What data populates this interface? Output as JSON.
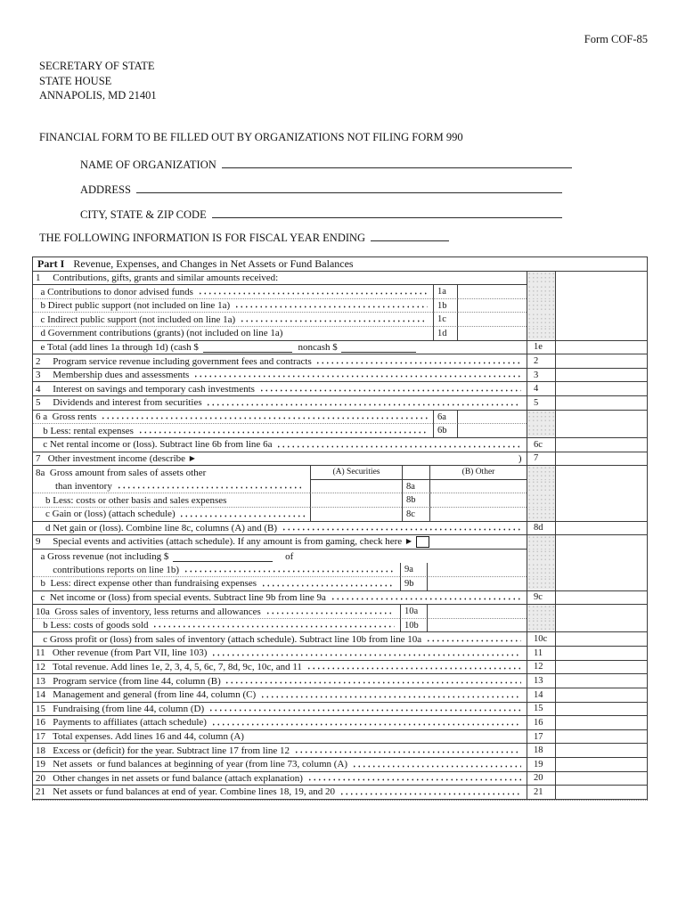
{
  "icons": {
    "triangle": "▶"
  },
  "form": {
    "number": "Form COF-85",
    "agency": [
      "SECRETARY OF STATE",
      "STATE HOUSE",
      "ANNAPOLIS, MD 21401"
    ],
    "title": "FINANCIAL FORM TO BE FILLED OUT BY ORGANIZATIONS NOT FILING FORM 990",
    "fields": [
      {
        "label": "NAME OF ORGANIZATION",
        "value": ""
      },
      {
        "label": "ADDRESS",
        "value": ""
      },
      {
        "label": "CITY, STATE & ZIP CODE",
        "value": ""
      }
    ],
    "fiscal": {
      "label": "THE FOLLOWING INFORMATION IS FOR FISCAL YEAR ENDING",
      "value": ""
    }
  },
  "part1": {
    "label": "Part I",
    "title": "Revenue, Expenses, and Changes in Net Assets or Fund Balances",
    "rows": [
      {
        "k": "plain",
        "text": "1     Contributions, gifts, grants and similar amounts received:",
        "sep": "solid"
      },
      {
        "k": "label",
        "lc": "n",
        "text": "  a Contributions to donor advised funds ",
        "dots": true,
        "num": "1a",
        "value": "",
        "sep": "dotted"
      },
      {
        "k": "label",
        "lc": "n",
        "text": "  b Direct public support (not included on line 1a) ",
        "dots": true,
        "num": "1b",
        "value": "",
        "sep": "dotted"
      },
      {
        "k": "label",
        "lc": "n",
        "text": "  c Indirect public support (not included on line 1a) ",
        "dots": true,
        "num": "1c",
        "value": "",
        "sep": "dotted"
      },
      {
        "k": "label",
        "lc": "n",
        "text": "  d Government contributions (grants) (not included on line 1a)",
        "dots": false,
        "num": "1d",
        "value": "",
        "sep": "solid",
        "outerSep": true
      },
      {
        "k": "etotal",
        "text": "  e Total (add lines 1a through 1d) (cash $ ",
        "text2": " noncash $ ",
        "cash_value": "",
        "noncash_value": "",
        "num": "1e",
        "value": "",
        "sep": "solid"
      },
      {
        "k": "active",
        "text": "2     Program service revenue including government fees and contracts ",
        "dots": true,
        "num": "2",
        "value": "",
        "sep": "solid"
      },
      {
        "k": "active",
        "text": "3     Membership dues and assessments ",
        "dots": true,
        "num": "3",
        "value": "",
        "sep": "solid"
      },
      {
        "k": "active",
        "text": "4     Interest on savings and temporary cash investments ",
        "dots": true,
        "num": "4",
        "value": "",
        "sep": "solid"
      },
      {
        "k": "active",
        "text": "5     Dividends and interest from securities ",
        "dots": true,
        "num": "5",
        "value": "",
        "sep": "solid"
      },
      {
        "k": "label",
        "lc": "n",
        "text": "6 a  Gross rents ",
        "dots": true,
        "num": "6a",
        "value": "",
        "sep": "dotted"
      },
      {
        "k": "label",
        "lc": "n",
        "text": "   b Less: rental expenses ",
        "dots": true,
        "num": "6b",
        "value": "",
        "sep": "solid",
        "outerSep": true
      },
      {
        "k": "active",
        "text": "   c Net rental income or (loss). Subtract line 6b from line 6a ",
        "dots": true,
        "num": "6c",
        "value": "",
        "sep": "solid"
      },
      {
        "k": "seven",
        "text": "7   Other investment income (describe ",
        "arrow": true,
        "text2": ")  ",
        "num": "7",
        "value": "",
        "sep": "solid"
      },
      {
        "k": "hdr8",
        "text": "8a  Gross amount from sales of assets other",
        "colA": "(A) Securities",
        "colB": "(B) Other",
        "sep": "solid"
      },
      {
        "k": "sub8",
        "text": "        than inventory ",
        "dots": true,
        "num": "8a",
        "value": "",
        "sep": "dotted"
      },
      {
        "k": "sub8",
        "text": "    b Less: costs or other basis and sales expenses",
        "dots": false,
        "num": "8b",
        "value": "",
        "sep": "dotted"
      },
      {
        "k": "sub8",
        "text": "    c Gain or (loss) (attach schedule) ",
        "dots": true,
        "num": "8c",
        "value": "",
        "sep": "solid",
        "outerSep": true
      },
      {
        "k": "active",
        "text": "    d Net gain or (loss). Combine line 8c, columns (A) and (B) ",
        "dots": true,
        "num": "8d",
        "value": "",
        "sep": "solid"
      },
      {
        "k": "nine",
        "text": "9     Special events and activities (attach schedule). If any amount is from gaming, check here ",
        "arrow": true,
        "checkbox": false,
        "sep": "solid"
      },
      {
        "k": "nineA",
        "text": "  a Gross revenue (not including $ ",
        "gross_value": "",
        "text2": "of",
        "sep": "none"
      },
      {
        "k": "label",
        "lc": "w",
        "text": "       contributions reports on line 1b) ",
        "dots": true,
        "num": "9a",
        "value": "",
        "sep": "dotted"
      },
      {
        "k": "label",
        "lc": "w",
        "text": "  b  Less: direct expense other than fundraising expenses ",
        "dots": true,
        "num": "9b",
        "value": "",
        "sep": "solid",
        "outerSep": true
      },
      {
        "k": "active",
        "text": "  c  Net income or (loss) from special events. Subtract line 9b from line 9a ",
        "dots": true,
        "num": "9c",
        "value": "",
        "sep": "solid"
      },
      {
        "k": "label",
        "lc": "w",
        "text": "10a  Gross sales of inventory, less returns and allowances ",
        "dots": true,
        "num": "10a",
        "value": "",
        "sep": "dotted"
      },
      {
        "k": "label",
        "lc": "w",
        "text": "   b Less: costs of goods sold ",
        "dots": true,
        "num": "10b",
        "value": "",
        "sep": "solid",
        "outerSep": true
      },
      {
        "k": "active",
        "text": "   c Gross profit or (loss) from sales of inventory (attach schedule). Subtract line 10b from line 10a ",
        "dots": true,
        "num": "10c",
        "value": "",
        "sep": "solid"
      },
      {
        "k": "active",
        "text": "11   Other revenue (from Part VII, line 103) ",
        "dots": true,
        "num": "11",
        "value": "",
        "sep": "solid"
      },
      {
        "k": "active",
        "text": "12   Total revenue. Add lines 1e, 2, 3, 4, 5, 6c, 7, 8d, 9c, 10c, and 11 ",
        "dots": true,
        "num": "12",
        "value": "",
        "sep": "solid"
      },
      {
        "k": "active",
        "text": "13   Program service (from line 44, column (B) ",
        "dots": true,
        "num": "13",
        "value": "",
        "sep": "solid"
      },
      {
        "k": "active",
        "text": "14   Management and general (from line 44, column (C) ",
        "dots": true,
        "num": "14",
        "value": "",
        "sep": "solid"
      },
      {
        "k": "active",
        "text": "15   Fundraising (from line 44, column (D) ",
        "dots": true,
        "num": "15",
        "value": "",
        "sep": "solid"
      },
      {
        "k": "active",
        "text": "16   Payments to affiliates (attach schedule) ",
        "dots": true,
        "num": "16",
        "value": "",
        "sep": "solid"
      },
      {
        "k": "active",
        "text": "17   Total expenses. Add lines 16 and 44, column (A)",
        "dots": false,
        "num": "17",
        "value": "",
        "sep": "solid"
      },
      {
        "k": "active",
        "text": "18   Excess or (deficit) for the year. Subtract line 17 from line 12 ",
        "dots": true,
        "num": "18",
        "value": "",
        "sep": "solid"
      },
      {
        "k": "active",
        "text": "19   Net assets  or fund balances at beginning of year (from line 73, column (A) ",
        "dots": true,
        "num": "19",
        "value": "",
        "sep": "solid"
      },
      {
        "k": "active",
        "text": "20   Other changes in net assets or fund balance (attach explanation) ",
        "dots": true,
        "num": "20",
        "value": "",
        "sep": "solid"
      },
      {
        "k": "active",
        "text": "21   Net assets or fund balances at end of year. Combine lines 18, 19, and 20 ",
        "dots": true,
        "num": "21",
        "value": "",
        "sep": "solid"
      }
    ]
  }
}
